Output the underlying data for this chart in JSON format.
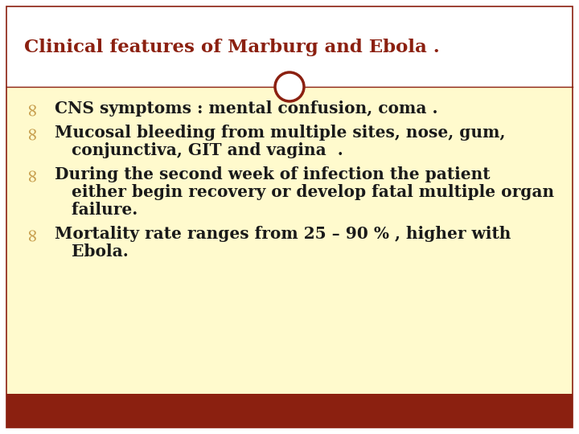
{
  "title": "Clinical features of Marburg and Ebola .",
  "title_color": "#8B2010",
  "background_color": "#FFFFFF",
  "content_bg_color": "#FFFACD",
  "bottom_bar_color": "#8B2010",
  "divider_color": "#8B2010",
  "bullet_color": "#C8A050",
  "text_color": "#1A1A1A",
  "bullet_items": [
    [
      "CNS symptoms : mental confusion, coma ."
    ],
    [
      "Mucosal bleeding from multiple sites, nose, gum,",
      "   conjunctiva, GIT and vagina  ."
    ],
    [
      "During the second week of infection the patient",
      "   either begin recovery or develop fatal multiple organ",
      "   failure."
    ],
    [
      "Mortality rate ranges from 25 – 90 % , higher with",
      "   Ebola."
    ]
  ],
  "font_size": 14.5,
  "title_font_size": 16.5
}
